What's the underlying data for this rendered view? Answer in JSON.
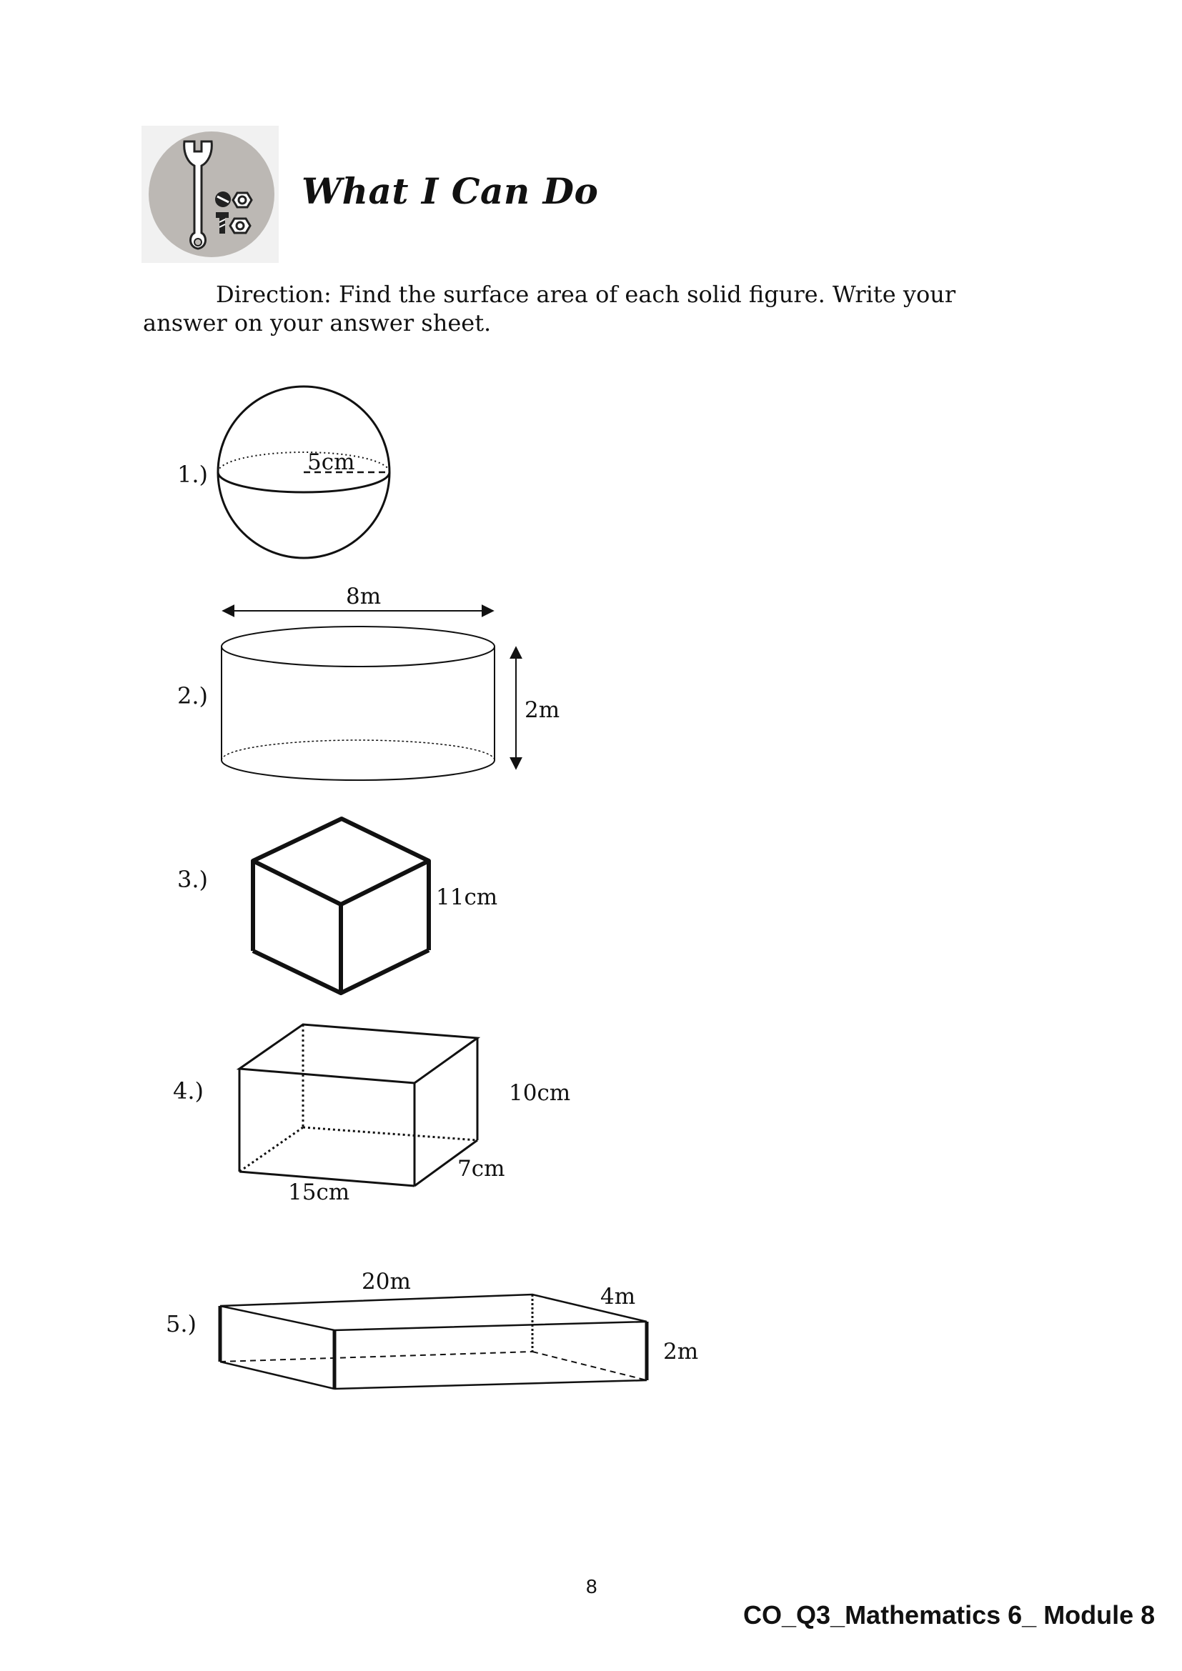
{
  "section": {
    "title": "What I Can Do",
    "icon": "wrench-bolts-icon"
  },
  "direction": {
    "text": "Direction: Find the surface area of each solid figure. Write your answer on your answer sheet."
  },
  "problems": [
    {
      "number": "1.)",
      "shape": "sphere",
      "labels": [
        "5cm"
      ]
    },
    {
      "number": "2.)",
      "shape": "cylinder",
      "labels": [
        "8m",
        "2m"
      ]
    },
    {
      "number": "3.)",
      "shape": "cube",
      "labels": [
        "11cm"
      ]
    },
    {
      "number": "4.)",
      "shape": "rectangular-prism",
      "labels": [
        "10cm",
        "7cm",
        "15cm"
      ]
    },
    {
      "number": "5.)",
      "shape": "rectangular-prism",
      "labels": [
        "20m",
        "4m",
        "2m"
      ]
    }
  ],
  "footer": {
    "page_number": "8",
    "module_code": "CO_Q3_Mathematics 6_ Module 8"
  }
}
